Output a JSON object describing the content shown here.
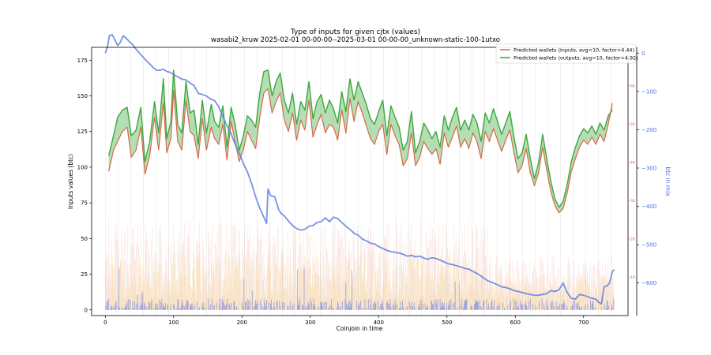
{
  "chart_data": {
    "type": "line",
    "title": "Type of inputs for given cjtx (values)",
    "subtitle": "wasabi2_kruw 2025-02-01 00-00-00--2025-03-01 00-00-00_unknown-static-100-1utxo",
    "xlabel": "Coinjoin in time",
    "ylabel": "Inputs values (btc)",
    "y2label": "btc in mix",
    "xlim": [
      -20,
      765
    ],
    "ylim": [
      -4,
      184
    ],
    "y2lim": [
      -685,
      15
    ],
    "y3lim": [
      0,
      70
    ],
    "xticks": [
      "0",
      "100",
      "200",
      "300",
      "400",
      "500",
      "600",
      "700"
    ],
    "yticks": [
      "0",
      "25",
      "50",
      "75",
      "100",
      "125",
      "150",
      "175"
    ],
    "y2ticks": [
      "0",
      "−100",
      "−200",
      "−300",
      "−400",
      "−500",
      "−600"
    ],
    "y3ticks": [
      "10",
      "20",
      "30",
      "40",
      "50",
      "60"
    ],
    "legend_position": "top-right",
    "series": [
      {
        "name": "Predicted wallets (inputs, avg=10, factor=4.44)",
        "color": "#d9593b",
        "x": [
          5,
          12,
          18,
          25,
          32,
          38,
          45,
          52,
          58,
          65,
          72,
          78,
          85,
          90,
          96,
          100,
          106,
          112,
          118,
          124,
          130,
          136,
          142,
          148,
          155,
          160,
          166,
          172,
          178,
          184,
          190,
          196,
          202,
          208,
          214,
          220,
          226,
          232,
          238,
          244,
          250,
          256,
          262,
          268,
          274,
          280,
          286,
          292,
          298,
          304,
          310,
          316,
          322,
          328,
          334,
          340,
          346,
          352,
          358,
          364,
          370,
          376,
          382,
          388,
          394,
          400,
          406,
          412,
          418,
          424,
          430,
          436,
          442,
          448,
          454,
          460,
          466,
          472,
          478,
          484,
          490,
          496,
          502,
          508,
          514,
          520,
          526,
          532,
          538,
          544,
          550,
          556,
          562,
          568,
          574,
          580,
          586,
          592,
          598,
          604,
          610,
          616,
          622,
          628,
          634,
          640,
          646,
          652,
          658,
          664,
          670,
          676,
          682,
          688,
          694,
          700,
          706,
          712,
          718,
          724,
          730,
          736,
          742
        ],
        "values": [
          97,
          112,
          118,
          125,
          128,
          107,
          112,
          128,
          95,
          108,
          135,
          112,
          145,
          110,
          120,
          154,
          118,
          112,
          147,
          125,
          122,
          106,
          134,
          112,
          128,
          120,
          116,
          130,
          105,
          132,
          118,
          104,
          112,
          125,
          119,
          113,
          135,
          152,
          155,
          138,
          146,
          152,
          133,
          125,
          138,
          119,
          133,
          126,
          147,
          121,
          130,
          137,
          124,
          130,
          128,
          119,
          140,
          124,
          148,
          132,
          146,
          138,
          129,
          120,
          116,
          125,
          130,
          109,
          130,
          122,
          116,
          101,
          106,
          124,
          101,
          107,
          118,
          113,
          109,
          113,
          102,
          124,
          114,
          121,
          129,
          114,
          120,
          113,
          124,
          118,
          106,
          125,
          118,
          127,
          119,
          111,
          119,
          126,
          110,
          96,
          101,
          113,
          96,
          87,
          96,
          114,
          98,
          83,
          73,
          68,
          71,
          82,
          97,
          106,
          114,
          119,
          116,
          121,
          116,
          123,
          118,
          130,
          145
        ]
      },
      {
        "name": "Predicted wallets (outputs, avg=10, factor=4.92)",
        "color": "#2ca02c",
        "x": [
          5,
          12,
          18,
          25,
          32,
          38,
          45,
          52,
          58,
          65,
          72,
          78,
          85,
          90,
          96,
          100,
          106,
          112,
          118,
          124,
          130,
          136,
          142,
          148,
          155,
          160,
          166,
          172,
          178,
          184,
          190,
          196,
          202,
          208,
          214,
          220,
          226,
          232,
          238,
          244,
          250,
          256,
          262,
          268,
          274,
          280,
          286,
          292,
          298,
          304,
          310,
          316,
          322,
          328,
          334,
          340,
          346,
          352,
          358,
          364,
          370,
          376,
          382,
          388,
          394,
          400,
          406,
          412,
          418,
          424,
          430,
          436,
          442,
          448,
          454,
          460,
          466,
          472,
          478,
          484,
          490,
          496,
          502,
          508,
          514,
          520,
          526,
          532,
          538,
          544,
          550,
          556,
          562,
          568,
          574,
          580,
          586,
          592,
          598,
          604,
          610,
          616,
          622,
          628,
          634,
          640,
          646,
          652,
          658,
          664,
          670,
          676,
          682,
          688,
          694,
          700,
          706,
          712,
          718,
          724,
          730,
          736,
          742
        ],
        "values": [
          108,
          122,
          135,
          140,
          142,
          122,
          126,
          142,
          104,
          118,
          146,
          124,
          162,
          120,
          132,
          168,
          130,
          124,
          160,
          138,
          140,
          116,
          147,
          124,
          144,
          132,
          128,
          143,
          114,
          142,
          130,
          112,
          122,
          136,
          133,
          128,
          152,
          167,
          168,
          150,
          160,
          166,
          147,
          138,
          152,
          130,
          146,
          140,
          160,
          134,
          146,
          151,
          138,
          147,
          141,
          131,
          153,
          139,
          162,
          147,
          160,
          152,
          144,
          134,
          130,
          139,
          147,
          122,
          143,
          135,
          128,
          112,
          118,
          139,
          110,
          118,
          131,
          126,
          120,
          125,
          114,
          136,
          126,
          135,
          142,
          126,
          133,
          126,
          137,
          131,
          118,
          138,
          131,
          141,
          132,
          123,
          131,
          139,
          121,
          106,
          110,
          123,
          106,
          92,
          103,
          123,
          106,
          90,
          78,
          72,
          76,
          88,
          104,
          114,
          122,
          127,
          124,
          129,
          123,
          131,
          126,
          136,
          140
        ]
      },
      {
        "name": "btc in mix",
        "color": "#5f7fe0",
        "axis": "right",
        "x": [
          0,
          3,
          6,
          10,
          14,
          18,
          22,
          26,
          30,
          35,
          40,
          45,
          50,
          55,
          60,
          65,
          70,
          75,
          80,
          85,
          90,
          95,
          100,
          106,
          112,
          118,
          124,
          130,
          136,
          142,
          148,
          154,
          160,
          166,
          172,
          178,
          184,
          190,
          196,
          202,
          208,
          214,
          220,
          226,
          232,
          236,
          238,
          242,
          248,
          254,
          258,
          262,
          268,
          274,
          280,
          286,
          292,
          298,
          304,
          310,
          316,
          322,
          328,
          334,
          340,
          346,
          352,
          358,
          364,
          370,
          376,
          382,
          388,
          394,
          400,
          406,
          412,
          418,
          424,
          430,
          436,
          442,
          448,
          454,
          460,
          466,
          472,
          478,
          484,
          490,
          496,
          502,
          508,
          514,
          520,
          526,
          532,
          538,
          544,
          550,
          556,
          562,
          568,
          574,
          580,
          586,
          592,
          598,
          604,
          610,
          616,
          622,
          628,
          634,
          640,
          646,
          652,
          658,
          664,
          670,
          676,
          682,
          688,
          694,
          700,
          706,
          712,
          718,
          722,
          726,
          730,
          734,
          738,
          742,
          745
        ],
        "values": [
          0,
          15,
          45,
          48,
          35,
          20,
          28,
          45,
          40,
          30,
          22,
          10,
          0,
          -10,
          -20,
          -28,
          -38,
          -45,
          -45,
          -42,
          -48,
          -50,
          -56,
          -62,
          -68,
          -70,
          -78,
          -85,
          -105,
          -108,
          -112,
          -120,
          -124,
          -140,
          -165,
          -190,
          -210,
          -238,
          -260,
          -288,
          -310,
          -340,
          -375,
          -405,
          -428,
          -445,
          -355,
          -372,
          -375,
          -410,
          -420,
          -425,
          -438,
          -450,
          -458,
          -462,
          -460,
          -452,
          -450,
          -442,
          -440,
          -430,
          -440,
          -428,
          -432,
          -442,
          -452,
          -460,
          -470,
          -475,
          -485,
          -490,
          -496,
          -498,
          -505,
          -510,
          -515,
          -518,
          -520,
          -522,
          -525,
          -530,
          -528,
          -532,
          -530,
          -535,
          -538,
          -534,
          -536,
          -540,
          -545,
          -550,
          -552,
          -555,
          -558,
          -562,
          -564,
          -570,
          -575,
          -582,
          -590,
          -596,
          -600,
          -605,
          -610,
          -612,
          -615,
          -620,
          -622,
          -625,
          -628,
          -630,
          -632,
          -632,
          -630,
          -628,
          -620,
          -622,
          -618,
          -600,
          -625,
          -640,
          -642,
          -630,
          -632,
          -636,
          -640,
          -642,
          -650,
          -655,
          -610,
          -608,
          -600,
          -570,
          -565
        ]
      }
    ]
  }
}
